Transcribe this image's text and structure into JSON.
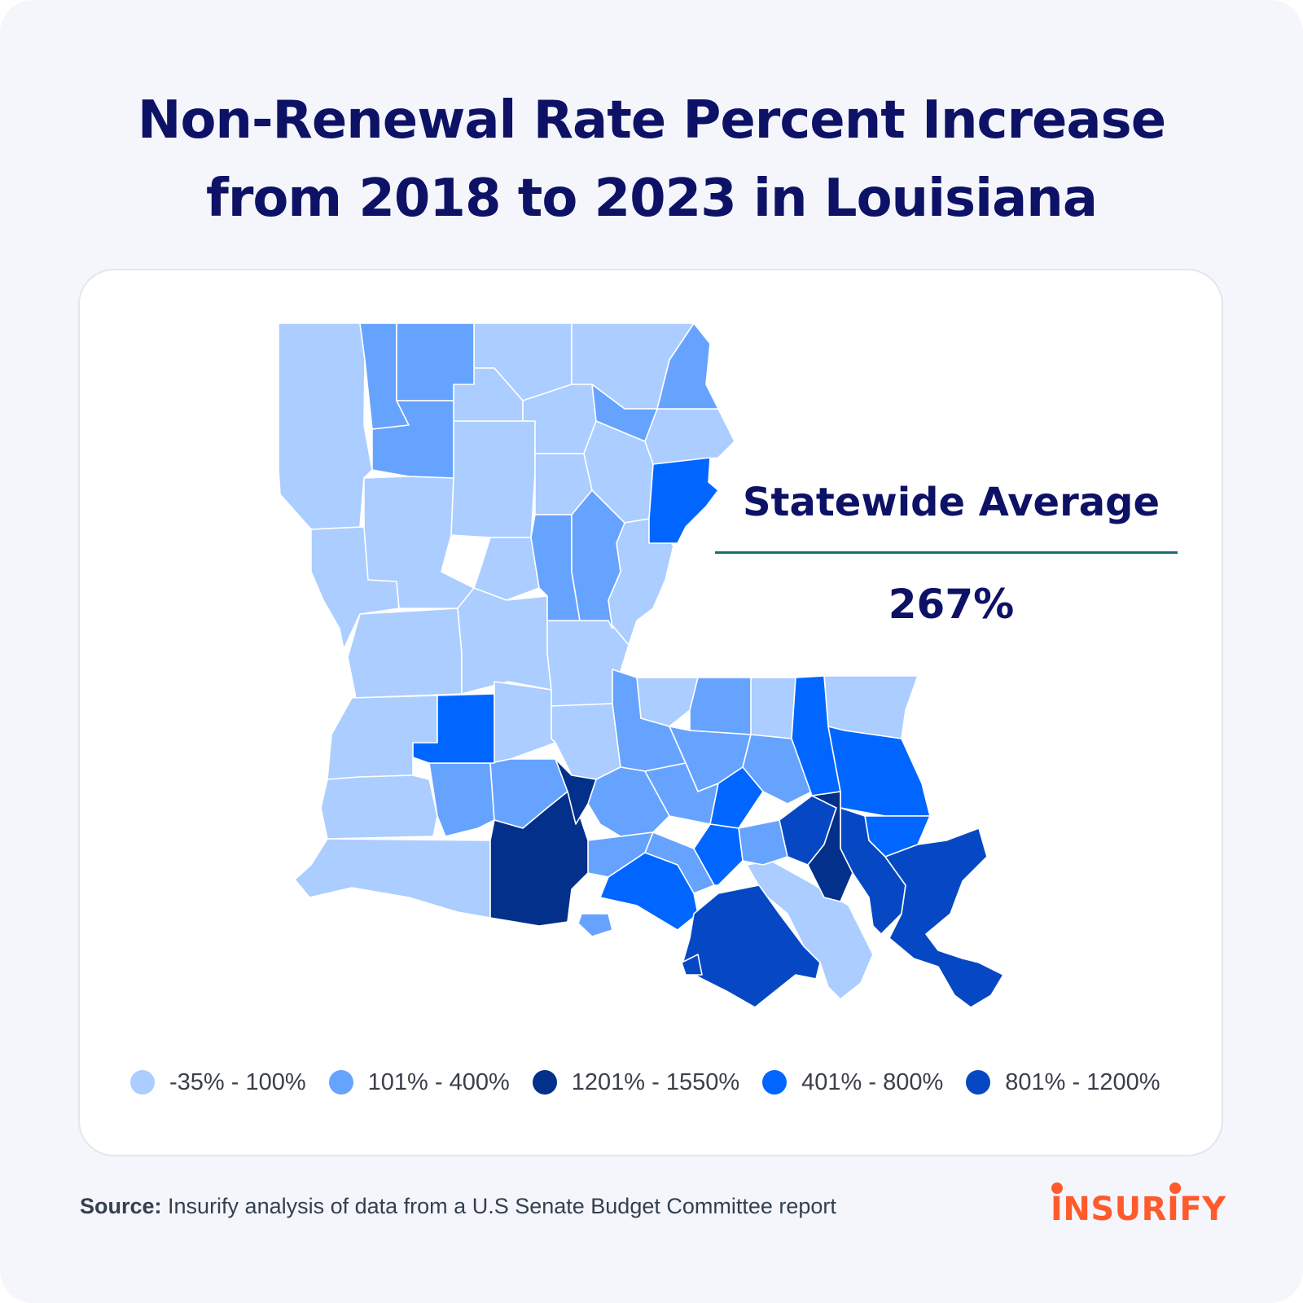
{
  "title": {
    "line1": "Non-Renewal Rate Percent Increase",
    "line2": "from 2018 to 2023 in Louisiana"
  },
  "stat": {
    "label": "Statewide Average",
    "value": "267%"
  },
  "legend": [
    {
      "label": "-35% - 100%",
      "color": "#abcdff"
    },
    {
      "label": "101% - 400%",
      "color": "#66a3ff"
    },
    {
      "label": "1201% - 1550%",
      "color": "#03308a"
    },
    {
      "label": "401% - 800%",
      "color": "#0066ff"
    },
    {
      "label": "801% - 1200%",
      "color": "#0648c4"
    }
  ],
  "source": {
    "prefix": "Source:",
    "text": " Insurify analysis of data from a U.S Senate Budget Committee report"
  },
  "brand": {
    "name": "INSURIFY",
    "color": "#ff5a2c"
  },
  "colors": {
    "title": "#0d1266",
    "rule": "#1a6d73",
    "background": "#f4f6fb"
  }
}
